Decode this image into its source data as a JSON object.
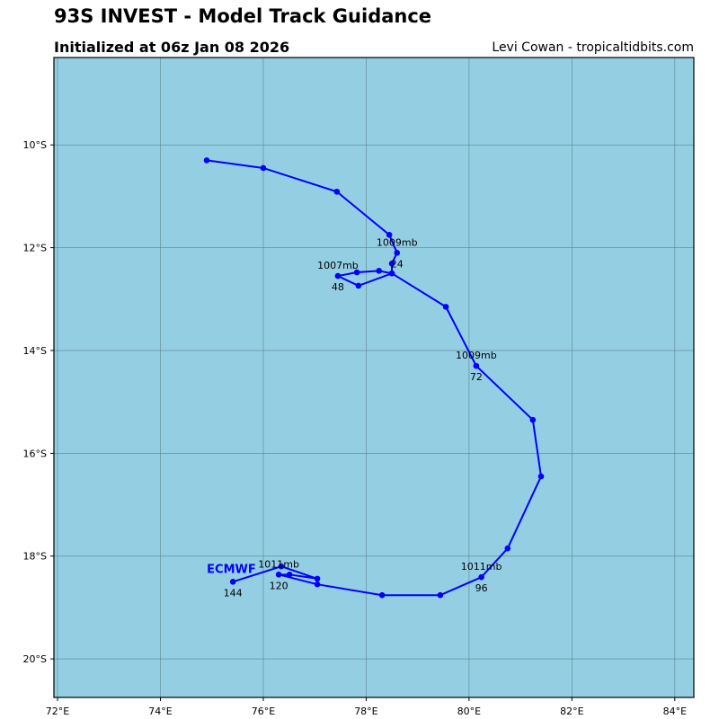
{
  "header": {
    "title": "93S INVEST - Model Track Guidance",
    "subtitle": "Initialized at 06z Jan 08 2026",
    "credit": "Levi Cowan - tropicaltidbits.com"
  },
  "chart_data": {
    "type": "line",
    "map_type": "track map",
    "xlim": [
      71.93,
      84.37
    ],
    "ylim": [
      -20.75,
      -8.3
    ],
    "grid": true,
    "xticks": [
      72,
      74,
      76,
      78,
      80,
      82,
      84
    ],
    "xtick_labels": [
      "72°E",
      "74°E",
      "76°E",
      "78°E",
      "80°E",
      "82°E",
      "84°E"
    ],
    "yticks": [
      -10,
      -12,
      -14,
      -16,
      -18,
      -20
    ],
    "ytick_labels": [
      "10°S",
      "12°S",
      "14°S",
      "16°S",
      "18°S",
      "20°S"
    ],
    "colors": {
      "ocean": "#94cee3",
      "track": "#0000ff",
      "grid": "#5a7f8c"
    },
    "series": [
      {
        "name": "ECMWF",
        "points": [
          [
            74.9,
            -10.3
          ],
          [
            76.0,
            -10.45
          ],
          [
            77.43,
            -10.91
          ],
          [
            78.45,
            -11.75
          ],
          [
            78.6,
            -12.1
          ],
          [
            78.5,
            -12.31
          ],
          [
            78.5,
            -12.5
          ],
          [
            78.25,
            -12.45
          ],
          [
            77.82,
            -12.48
          ],
          [
            77.45,
            -12.55
          ],
          [
            77.85,
            -12.74
          ],
          [
            78.5,
            -12.5
          ],
          [
            79.55,
            -13.15
          ],
          [
            80.14,
            -14.3
          ],
          [
            81.24,
            -15.35
          ],
          [
            81.4,
            -16.45
          ],
          [
            80.75,
            -17.85
          ],
          [
            80.24,
            -18.41
          ],
          [
            79.44,
            -18.76
          ],
          [
            78.31,
            -18.76
          ],
          [
            77.05,
            -18.55
          ],
          [
            76.3,
            -18.36
          ],
          [
            76.51,
            -18.36
          ],
          [
            77.05,
            -18.44
          ],
          [
            76.35,
            -18.2
          ],
          [
            75.41,
            -18.5
          ]
        ],
        "annotations": [
          {
            "point": 4,
            "pressure": "1009mb",
            "hour": "24"
          },
          {
            "point": 9,
            "pressure": "1007mb",
            "hour": "48"
          },
          {
            "point": 13,
            "pressure": "1009mb",
            "hour": "72"
          },
          {
            "point": 17,
            "pressure": "1011mb",
            "hour": "96"
          },
          {
            "point": 21,
            "pressure": "1011mb",
            "hour": "120"
          },
          {
            "point": 25,
            "pressure": "",
            "hour": "144"
          }
        ]
      }
    ]
  }
}
